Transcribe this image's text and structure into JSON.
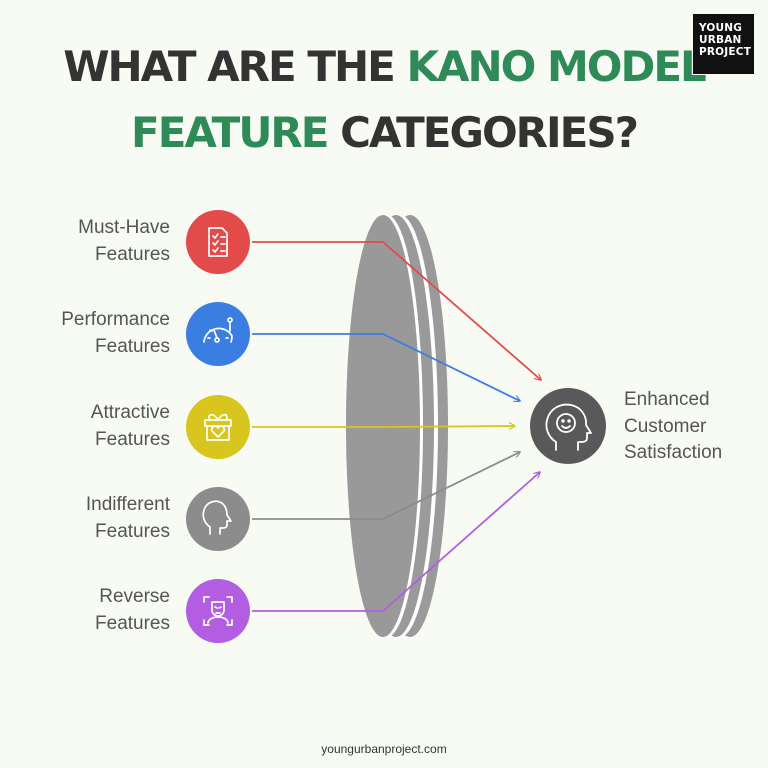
{
  "title": {
    "line1_dark": "WHAT ARE THE ",
    "line1_green": "KANO MODEL",
    "line2_green": "FEATURE",
    "line2_dark": " CATEGORIES?"
  },
  "logo": {
    "lines": [
      "YOUNG",
      "URBAN",
      "PROJECT"
    ]
  },
  "categories": [
    {
      "line1": "Must-Have",
      "line2": "Features",
      "icon": "checklist-icon",
      "color": "#e34b4b"
    },
    {
      "line1": "Performance",
      "line2": "Features",
      "icon": "speedometer-icon",
      "color": "#3b7ee2"
    },
    {
      "line1": "Attractive",
      "line2": "Features",
      "icon": "gift-heart-icon",
      "color": "#d8c51e"
    },
    {
      "line1": "Indifferent",
      "line2": "Features",
      "icon": "head-profile-icon",
      "color": "#8c8c8c"
    },
    {
      "line1": "Reverse",
      "line2": "Features",
      "icon": "face-scan-icon",
      "color": "#b35de3"
    }
  ],
  "outcome": {
    "line1": "Enhanced",
    "line2": "Customer",
    "line3": "Satisfaction",
    "icon": "smiling-head-icon",
    "color": "#5a5a5a"
  },
  "footer": "youngurbanproject.com"
}
